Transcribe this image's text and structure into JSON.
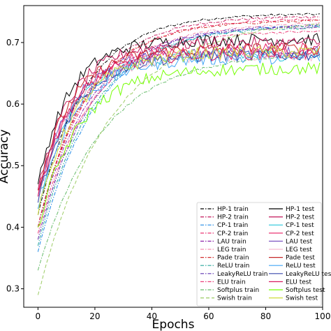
{
  "chart_data": {
    "type": "line",
    "title": "",
    "xlabel": "Epochs",
    "ylabel": "Accuracy",
    "xlim": [
      -5,
      100
    ],
    "ylim": [
      0.27,
      0.76
    ],
    "xticks": [
      0,
      20,
      40,
      60,
      80,
      100
    ],
    "yticks": [
      0.3,
      0.4,
      0.5,
      0.6,
      0.7
    ],
    "grid": false,
    "legend_placement": "bottom-right",
    "legend_columns": 2,
    "x_max_epoch": 99,
    "series": [
      {
        "name": "HP-1 train",
        "color": "#000000",
        "dash": "dashdot",
        "start": 0.42,
        "end": 0.746,
        "rate": 0.06,
        "noise": 0.002
      },
      {
        "name": "HP-2 train",
        "color": "#c2185b",
        "dash": "dashdot",
        "start": 0.4,
        "end": 0.742,
        "rate": 0.058,
        "noise": 0.002
      },
      {
        "name": "CP-1 train",
        "color": "#1e88e5",
        "dash": "dashdot",
        "start": 0.36,
        "end": 0.728,
        "rate": 0.05,
        "noise": 0.002
      },
      {
        "name": "CP-2 train",
        "color": "#e91e63",
        "dash": "dashdot",
        "start": 0.4,
        "end": 0.738,
        "rate": 0.056,
        "noise": 0.002
      },
      {
        "name": "LAU train",
        "color": "#8e24aa",
        "dash": "dashdot",
        "start": 0.4,
        "end": 0.725,
        "rate": 0.055,
        "noise": 0.002
      },
      {
        "name": "LEG train",
        "color": "#f48fb1",
        "dash": "dashdot",
        "start": 0.38,
        "end": 0.73,
        "rate": 0.054,
        "noise": 0.002
      },
      {
        "name": "Pade train",
        "color": "#d32f2f",
        "dash": "dashdot",
        "start": 0.4,
        "end": 0.735,
        "rate": 0.058,
        "noise": 0.002
      },
      {
        "name": "ReLU train",
        "color": "#26a69a",
        "dash": "dashdot",
        "start": 0.37,
        "end": 0.725,
        "rate": 0.052,
        "noise": 0.002
      },
      {
        "name": "LeakyReLU train",
        "color": "#5e35b1",
        "dash": "dashdot",
        "start": 0.38,
        "end": 0.728,
        "rate": 0.053,
        "noise": 0.002
      },
      {
        "name": "ELU train",
        "color": "#ec407a",
        "dash": "dashdot",
        "start": 0.39,
        "end": 0.718,
        "rate": 0.055,
        "noise": 0.002
      },
      {
        "name": "Softplus train",
        "color": "#66bb6a",
        "dash": "dashdot",
        "start": 0.33,
        "end": 0.68,
        "rate": 0.045,
        "noise": 0.002
      },
      {
        "name": "Swish train",
        "color": "#9ccc65",
        "dash": "dashed",
        "start": 0.29,
        "end": 0.73,
        "rate": 0.04,
        "noise": 0.002
      },
      {
        "name": "HP-1 test",
        "color": "#000000",
        "dash": "solid",
        "start": 0.47,
        "end": 0.705,
        "rate": 0.09,
        "noise": 0.01
      },
      {
        "name": "HP-2 test",
        "color": "#c2185b",
        "dash": "solid",
        "start": 0.46,
        "end": 0.7,
        "rate": 0.085,
        "noise": 0.01
      },
      {
        "name": "CP-1 test",
        "color": "#26c6da",
        "dash": "solid",
        "start": 0.44,
        "end": 0.68,
        "rate": 0.08,
        "noise": 0.01
      },
      {
        "name": "CP-2 test",
        "color": "#e91e63",
        "dash": "solid",
        "start": 0.45,
        "end": 0.69,
        "rate": 0.082,
        "noise": 0.01
      },
      {
        "name": "LAU test",
        "color": "#7e57c2",
        "dash": "solid",
        "start": 0.45,
        "end": 0.685,
        "rate": 0.082,
        "noise": 0.01
      },
      {
        "name": "LEG test",
        "color": "#f8bbd0",
        "dash": "solid",
        "start": 0.44,
        "end": 0.68,
        "rate": 0.08,
        "noise": 0.01
      },
      {
        "name": "Pade test",
        "color": "#c62828",
        "dash": "solid",
        "start": 0.46,
        "end": 0.69,
        "rate": 0.085,
        "noise": 0.01
      },
      {
        "name": "ReLU test",
        "color": "#42a5f5",
        "dash": "solid",
        "start": 0.43,
        "end": 0.675,
        "rate": 0.078,
        "noise": 0.01
      },
      {
        "name": "LeakyReLU test",
        "color": "#3949ab",
        "dash": "solid",
        "start": 0.44,
        "end": 0.68,
        "rate": 0.08,
        "noise": 0.01
      },
      {
        "name": "ELU test",
        "color": "#d81b60",
        "dash": "solid",
        "start": 0.45,
        "end": 0.682,
        "rate": 0.083,
        "noise": 0.01
      },
      {
        "name": "Softplus test",
        "color": "#76ff03",
        "dash": "solid",
        "start": 0.4,
        "end": 0.658,
        "rate": 0.07,
        "noise": 0.01
      },
      {
        "name": "Swish test",
        "color": "#cddc39",
        "dash": "solid",
        "start": 0.42,
        "end": 0.685,
        "rate": 0.075,
        "noise": 0.01
      }
    ]
  }
}
